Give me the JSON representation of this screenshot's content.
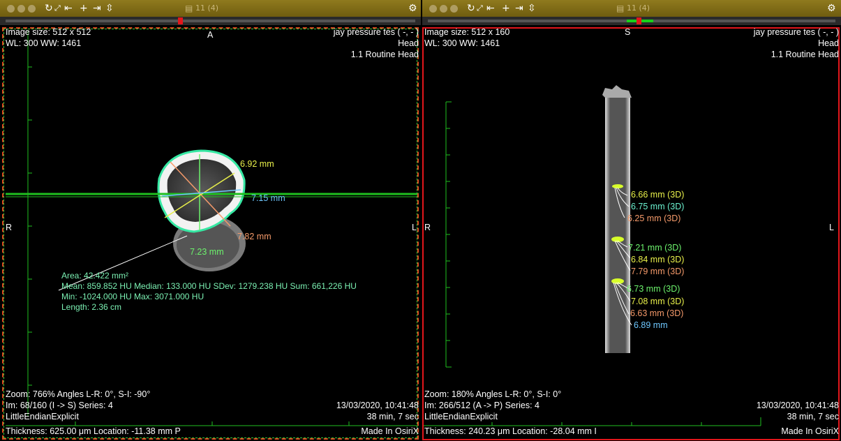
{
  "left": {
    "toolbar": {
      "count": "11 (4)"
    },
    "orientation": {
      "top": "A",
      "left": "R",
      "right": "L"
    },
    "overlay": {
      "image_size": "Image size: 512 x 512",
      "wl_ww": "WL: 300 WW: 1461",
      "patient": "jay pressure tes ( -, - )",
      "study": "Head",
      "series_desc": "1.1 Routine Head",
      "zoom": "Zoom: 766% Angles L-R: 0°, S-I: -90°",
      "image_info": "Im: 68/160  (I -> S) Series:  4",
      "datetime": "13/03/2020, 10:41:48",
      "transfer_syntax": "LittleEndianExplicit",
      "duration": "38 min, 7 sec",
      "thickness": "Thickness: 625.00 μm Location: -11.38 mm  P",
      "made_in": "Made In OsiriX"
    },
    "measurements": [
      {
        "label": "6.92 mm",
        "color": "#e9f04a"
      },
      {
        "label": "7.15 mm",
        "color": "#6fc8ff"
      },
      {
        "label": "7.82 mm",
        "color": "#f59a6a"
      },
      {
        "label": "7.23 mm",
        "color": "#6cf26c"
      }
    ],
    "roi_stats": {
      "area": "Area: 42.422 mm²",
      "mean": "Mean: 859.852 HU  Median: 133.000 HU  SDev: 1279.238 HU  Sum: 661,226 HU",
      "minmax": "Min: -1024.000 HU  Max: 3071.000 HU",
      "length": "Length: 2.36 cm"
    }
  },
  "right": {
    "toolbar": {
      "count": "11 (4)"
    },
    "orientation": {
      "top": "S",
      "left": "R",
      "right": "L"
    },
    "overlay": {
      "image_size": "Image size: 512 x 160",
      "wl_ww": "WL: 300 WW: 1461",
      "patient": "jay pressure tes ( -, - )",
      "study": "Head",
      "series_desc": "1.1 Routine Head",
      "zoom": "Zoom: 180% Angles L-R: 0°, S-I: 0°",
      "image_info": "Im: 266/512  (A -> P) Series:  4",
      "datetime": "13/03/2020, 10:41:48",
      "transfer_syntax": "LittleEndianExplicit",
      "duration": "38 min, 7 sec",
      "thickness": "Thickness: 240.23 μm Location: -28.04 mm  I",
      "made_in": "Made In OsiriX"
    },
    "measurements": [
      {
        "label": "6.66 mm (3D)",
        "color": "#e9f04a"
      },
      {
        "label": "6.75 mm (3D)",
        "color": "#6cf2d0"
      },
      {
        "label": "6.25 mm (3D)",
        "color": "#f59a6a"
      },
      {
        "label": "7.21 mm (3D)",
        "color": "#6cf26c"
      },
      {
        "label": "6.84 mm (3D)",
        "color": "#e9f04a"
      },
      {
        "label": "7.79 mm (3D)",
        "color": "#f59a6a"
      },
      {
        "label": "6.73 mm (3D)",
        "color": "#6cf26c"
      },
      {
        "label": "7.08 mm (3D)",
        "color": "#e9f04a"
      },
      {
        "label": "6.63 mm (3D)",
        "color": "#f59a6a"
      },
      {
        "label": "6.89 mm",
        "color": "#6fc8ff"
      }
    ]
  }
}
